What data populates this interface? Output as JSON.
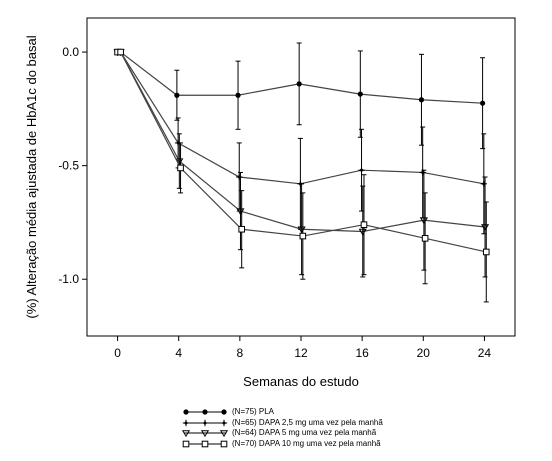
{
  "chart_data": {
    "type": "line",
    "xlabel": "Semanas do estudo",
    "ylabel": "(%) Alteração média ajustada de HbA1c do basal",
    "xlim": [
      -2,
      26
    ],
    "ylim": [
      -1.25,
      0.15
    ],
    "x_ticks": [
      0,
      4,
      8,
      12,
      16,
      20,
      24
    ],
    "y_ticks": [
      0.0,
      -0.5,
      -1.0
    ],
    "y_tick_labels": [
      "0.0",
      "-0.5",
      "-1.0"
    ],
    "legend_position": "bottom",
    "series": [
      {
        "name": "(N=75) PLA",
        "marker": "circle",
        "x": [
          0,
          0.2,
          4,
          8,
          12,
          16,
          20,
          24
        ],
        "y": [
          0,
          0,
          -0.19,
          -0.19,
          -0.14,
          -0.185,
          -0.21,
          -0.225
        ],
        "err": [
          0,
          0,
          0.11,
          0.15,
          0.18,
          0.19,
          0.2,
          0.2
        ]
      },
      {
        "name": "(N=65) DAPA 2,5 mg uma vez pela manhã",
        "marker": "plus",
        "x": [
          0,
          0.2,
          4,
          8,
          12,
          16,
          20,
          24
        ],
        "y": [
          0,
          0,
          -0.4,
          -0.55,
          -0.58,
          -0.52,
          -0.53,
          -0.58
        ],
        "err": [
          0,
          0,
          0.11,
          0.15,
          0.2,
          0.18,
          0.2,
          0.22
        ]
      },
      {
        "name": "(N=64) DAPA 5 mg uma vez pela manhã",
        "marker": "triangle-down",
        "x": [
          0,
          0.2,
          4,
          8,
          12,
          16,
          20,
          24
        ],
        "y": [
          0,
          0,
          -0.48,
          -0.7,
          -0.78,
          -0.79,
          -0.74,
          -0.77
        ],
        "err": [
          0,
          0,
          0.12,
          0.17,
          0.2,
          0.2,
          0.22,
          0.22
        ]
      },
      {
        "name": "(N=70) DAPA 10 mg uma vez pela manhã",
        "marker": "square",
        "x": [
          0,
          0.2,
          4,
          8,
          12,
          16,
          20,
          24
        ],
        "y": [
          0,
          0,
          -0.51,
          -0.78,
          -0.81,
          -0.76,
          -0.82,
          -0.88
        ],
        "err": [
          0,
          0,
          0.11,
          0.17,
          0.19,
          0.22,
          0.2,
          0.22
        ]
      }
    ],
    "colors": {
      "lines": "#000000",
      "background": "#ffffff"
    }
  }
}
